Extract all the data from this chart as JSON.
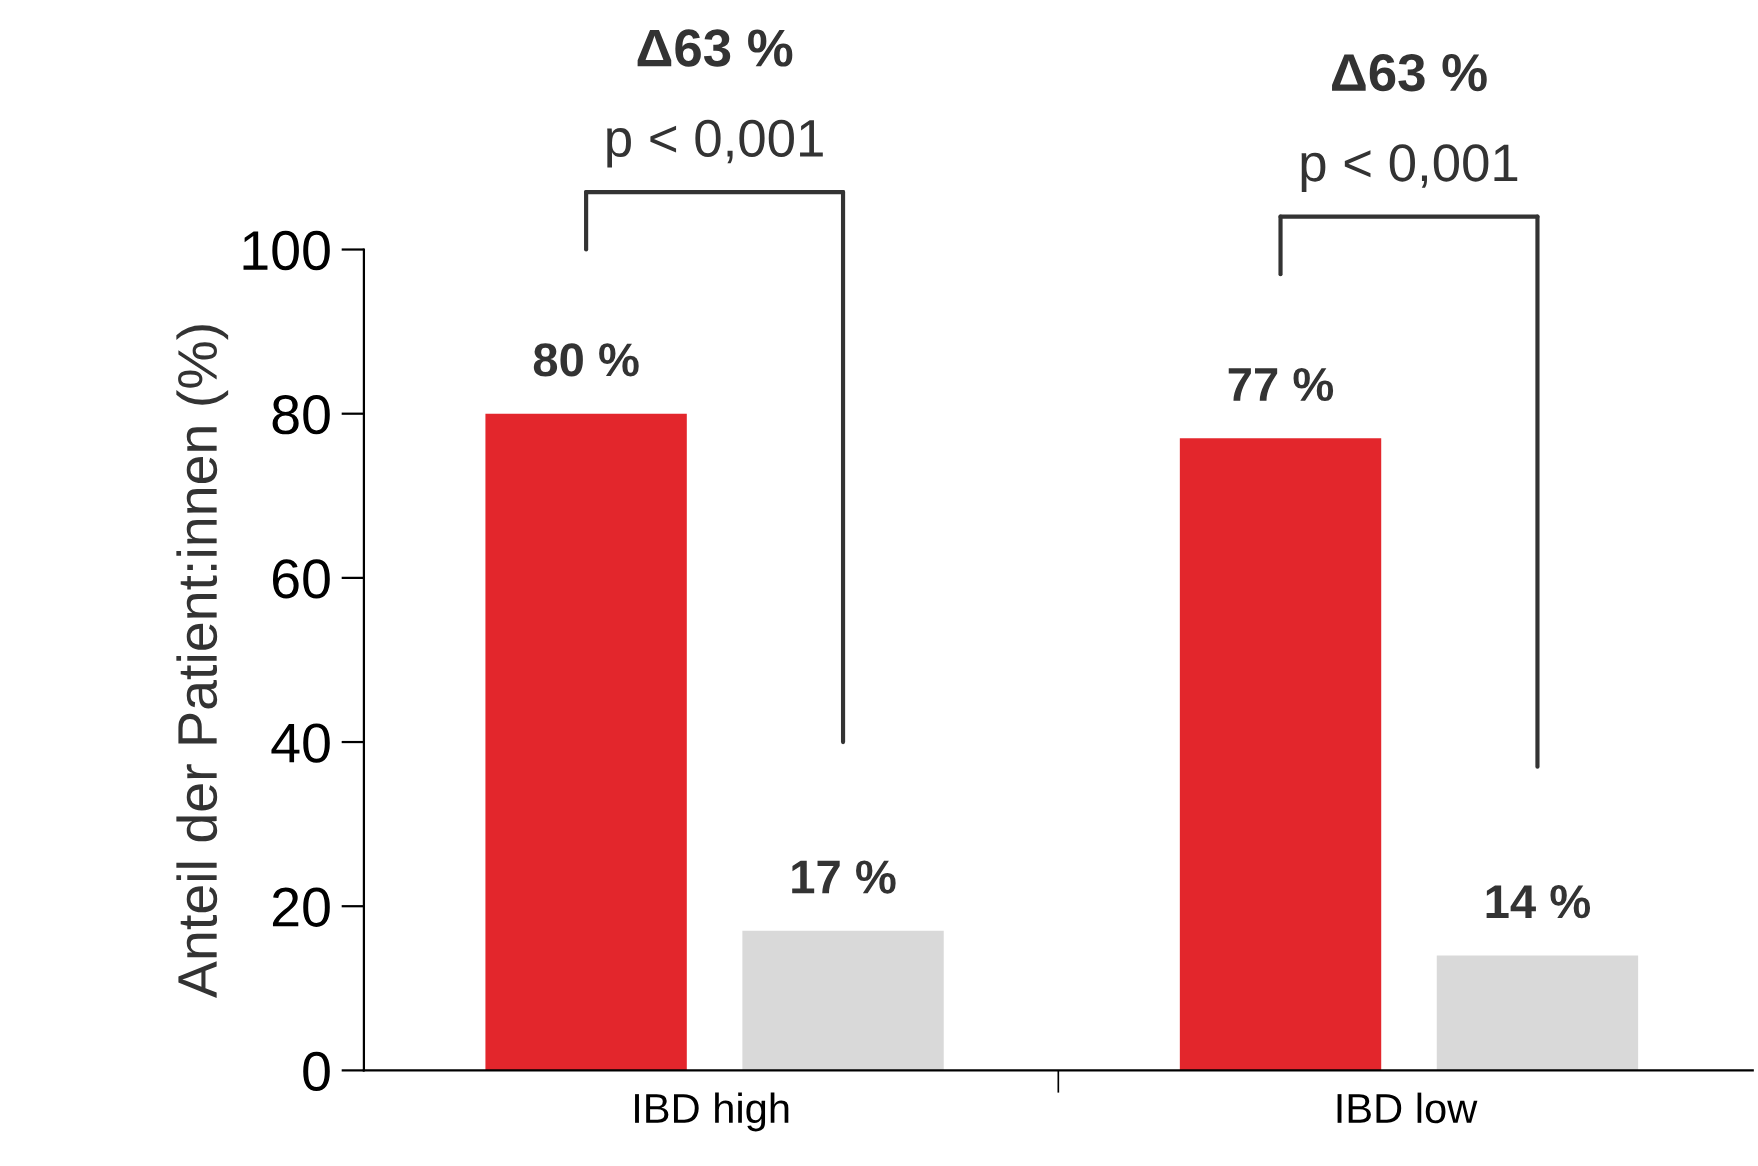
{
  "chart_data": {
    "type": "bar",
    "ylabel": "Anteil der Patient:innen (%)",
    "categories": [
      "IBD high",
      "IBD low"
    ],
    "series": [
      {
        "color": "#e3262c",
        "values": [
          80,
          77
        ],
        "value_labels": [
          "80 %",
          "77 %"
        ]
      },
      {
        "color": "#d9d9d9",
        "values": [
          17,
          14
        ],
        "value_labels": [
          "17 %",
          "14 %"
        ]
      }
    ],
    "ylim": [
      0,
      100
    ],
    "yticks": [
      0,
      20,
      40,
      60,
      80,
      100
    ],
    "grid": false,
    "legend": false,
    "annotations": [
      "Δ63 %",
      "p < 0,001",
      "Δ63 %",
      "p < 0,001"
    ]
  }
}
